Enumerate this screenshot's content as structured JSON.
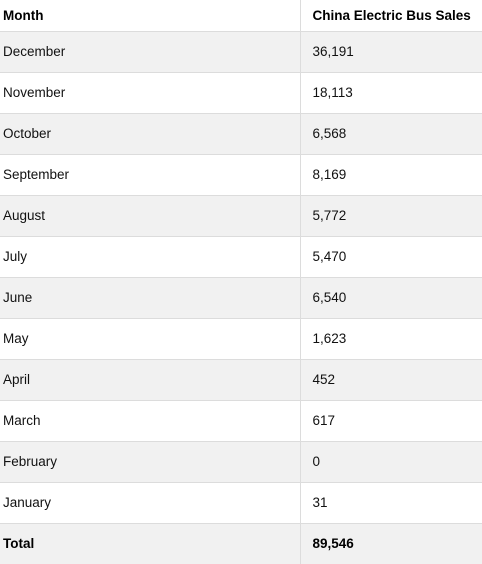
{
  "table": {
    "headers": [
      "Month",
      "China Electric Bus Sales"
    ],
    "rows": [
      {
        "month": "December",
        "sales": "36,191"
      },
      {
        "month": "November",
        "sales": "18,113"
      },
      {
        "month": "October",
        "sales": "6,568"
      },
      {
        "month": "September",
        "sales": "8,169"
      },
      {
        "month": "August",
        "sales": "5,772"
      },
      {
        "month": "July",
        "sales": "5,470"
      },
      {
        "month": "June",
        "sales": "6,540"
      },
      {
        "month": "May",
        "sales": "1,623"
      },
      {
        "month": "April",
        "sales": "452"
      },
      {
        "month": "March",
        "sales": "617"
      },
      {
        "month": "February",
        "sales": "0"
      },
      {
        "month": "January",
        "sales": "31"
      }
    ],
    "total": {
      "label": "Total",
      "value": "89,546"
    }
  }
}
